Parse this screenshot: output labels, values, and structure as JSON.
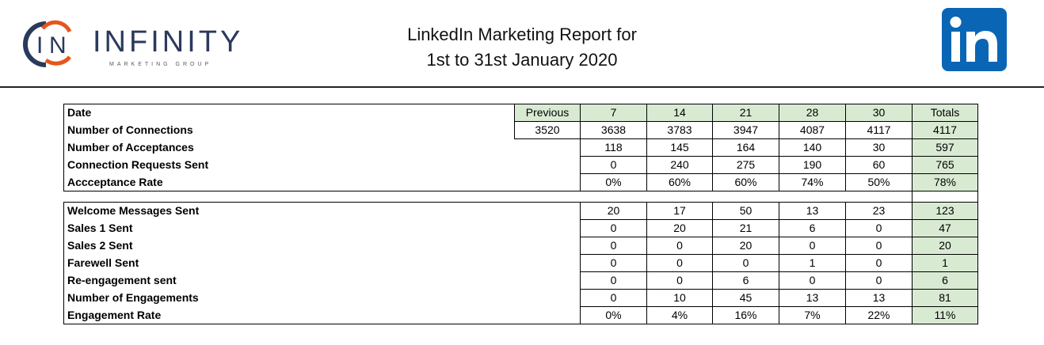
{
  "header": {
    "title_line1": "LinkedIn Marketing Report for",
    "title_line2": "1st to 31st January 2020",
    "logo_text": "INFINITY",
    "logo_subtext": "MARKETING GROUP",
    "linkedin_logo_text": "in",
    "brand_color": "#2a3a5c",
    "accent_color": "#e8541e",
    "linkedin_color": "#0a66b4",
    "header_fill": "#d9ead3"
  },
  "table1": {
    "header_label": "Date",
    "previous_label": "Previous",
    "columns": [
      "7",
      "14",
      "21",
      "28",
      "30"
    ],
    "totals_label": "Totals",
    "rows": [
      {
        "label": "Number of Connections",
        "previous": "3520",
        "values": [
          "3638",
          "3783",
          "3947",
          "4087",
          "4117"
        ],
        "total": "4117"
      },
      {
        "label": "Number of Acceptances",
        "values": [
          "118",
          "145",
          "164",
          "140",
          "30"
        ],
        "total": "597"
      },
      {
        "label": "Connection Requests Sent",
        "values": [
          "0",
          "240",
          "275",
          "190",
          "60"
        ],
        "total": "765"
      },
      {
        "label": "Accceptance Rate",
        "values": [
          "0%",
          "60%",
          "60%",
          "74%",
          "50%"
        ],
        "total": "78%"
      }
    ]
  },
  "table2": {
    "rows": [
      {
        "label": "Welcome Messages Sent",
        "values": [
          "20",
          "17",
          "50",
          "13",
          "23"
        ],
        "total": "123"
      },
      {
        "label": "Sales 1 Sent",
        "values": [
          "0",
          "20",
          "21",
          "6",
          "0"
        ],
        "total": "47"
      },
      {
        "label": "Sales 2 Sent",
        "values": [
          "0",
          "0",
          "20",
          "0",
          "0"
        ],
        "total": "20"
      },
      {
        "label": "Farewell Sent",
        "values": [
          "0",
          "0",
          "0",
          "1",
          "0"
        ],
        "total": "1"
      },
      {
        "label": "Re-engagement sent",
        "values": [
          "0",
          "0",
          "6",
          "0",
          "0"
        ],
        "total": "6"
      },
      {
        "label": "Number of Engagements",
        "values": [
          "0",
          "10",
          "45",
          "13",
          "13"
        ],
        "total": "81"
      },
      {
        "label": "Engagement Rate",
        "values": [
          "0%",
          "4%",
          "16%",
          "7%",
          "22%"
        ],
        "total": "11%"
      }
    ]
  }
}
